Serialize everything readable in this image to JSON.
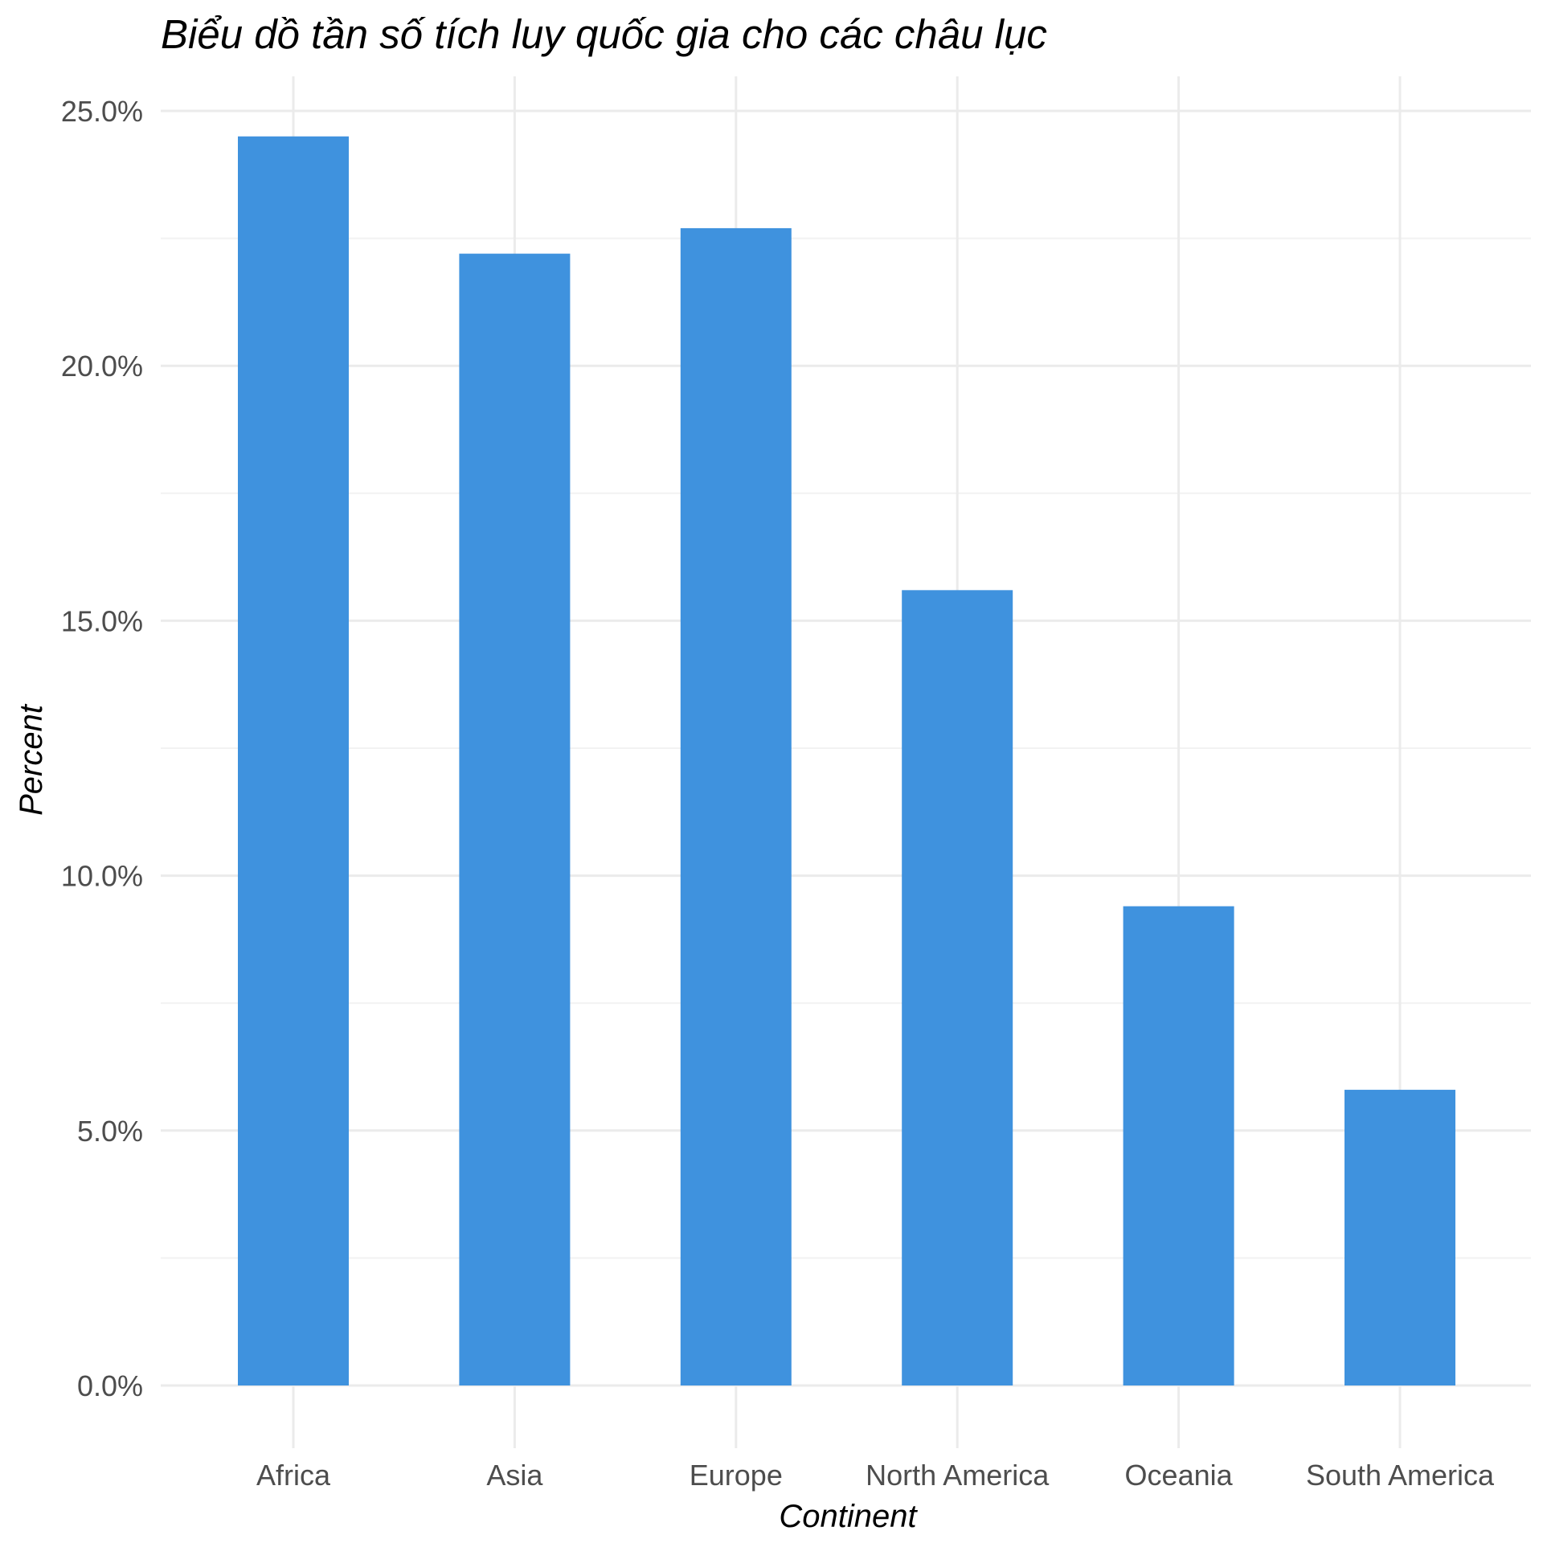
{
  "chart_data": {
    "type": "bar",
    "title": "Biểu dồ tần số tích luy quốc gia cho các châu lục",
    "xlabel": "Continent",
    "ylabel": "Percent",
    "categories": [
      "Africa",
      "Asia",
      "Europe",
      "North America",
      "Oceania",
      "South America"
    ],
    "values": [
      24.5,
      22.2,
      22.7,
      15.6,
      9.4,
      5.8
    ],
    "ylim": [
      0,
      25
    ],
    "yticks": [
      0,
      5,
      10,
      15,
      20,
      25
    ],
    "ytick_labels": [
      "0.0%",
      "5.0%",
      "10.0%",
      "15.0%",
      "20.0%",
      "25.0%"
    ],
    "bar_color": "#3f92de",
    "grid": true,
    "legend": "none"
  }
}
